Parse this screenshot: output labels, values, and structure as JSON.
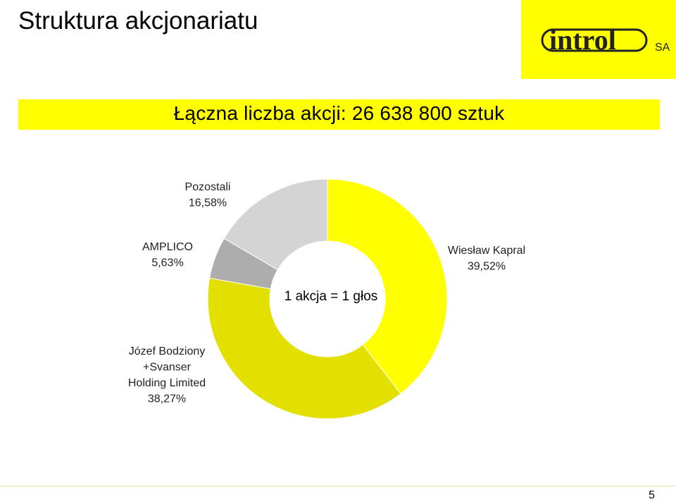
{
  "header": {
    "title": "Struktura akcjonariatu",
    "logo_text": "introl",
    "logo_suffix": "SA"
  },
  "banner": {
    "text": "Łączna liczba akcji: 26 638 800  sztuk"
  },
  "colors": {
    "brand_yellow": "#ffff00",
    "slice_kapral": "#ffff00",
    "slice_bodziony": "#e3e000",
    "slice_amplico": "#adadad",
    "slice_pozostali": "#d4d4d4"
  },
  "chart_data": {
    "type": "pie",
    "donut": true,
    "center_label": "1 akcja = 1 głos",
    "slices": [
      {
        "name": "Wiesław Kapral",
        "value": 39.52,
        "label_lines": [
          "Wiesław Kapral",
          "39,52%"
        ]
      },
      {
        "name": "Józef Bodziony +Svanser Holding Limited",
        "value": 38.27,
        "label_lines": [
          "Józef Bodziony",
          "+Svanser",
          "Holding Limited",
          "38,27%"
        ]
      },
      {
        "name": "AMPLICO",
        "value": 5.63,
        "label_lines": [
          "AMPLICO",
          "5,63%"
        ]
      },
      {
        "name": "Pozostali",
        "value": 16.58,
        "label_lines": [
          "Pozostali",
          "16,58%"
        ]
      }
    ]
  },
  "footer": {
    "page_number": "5"
  }
}
